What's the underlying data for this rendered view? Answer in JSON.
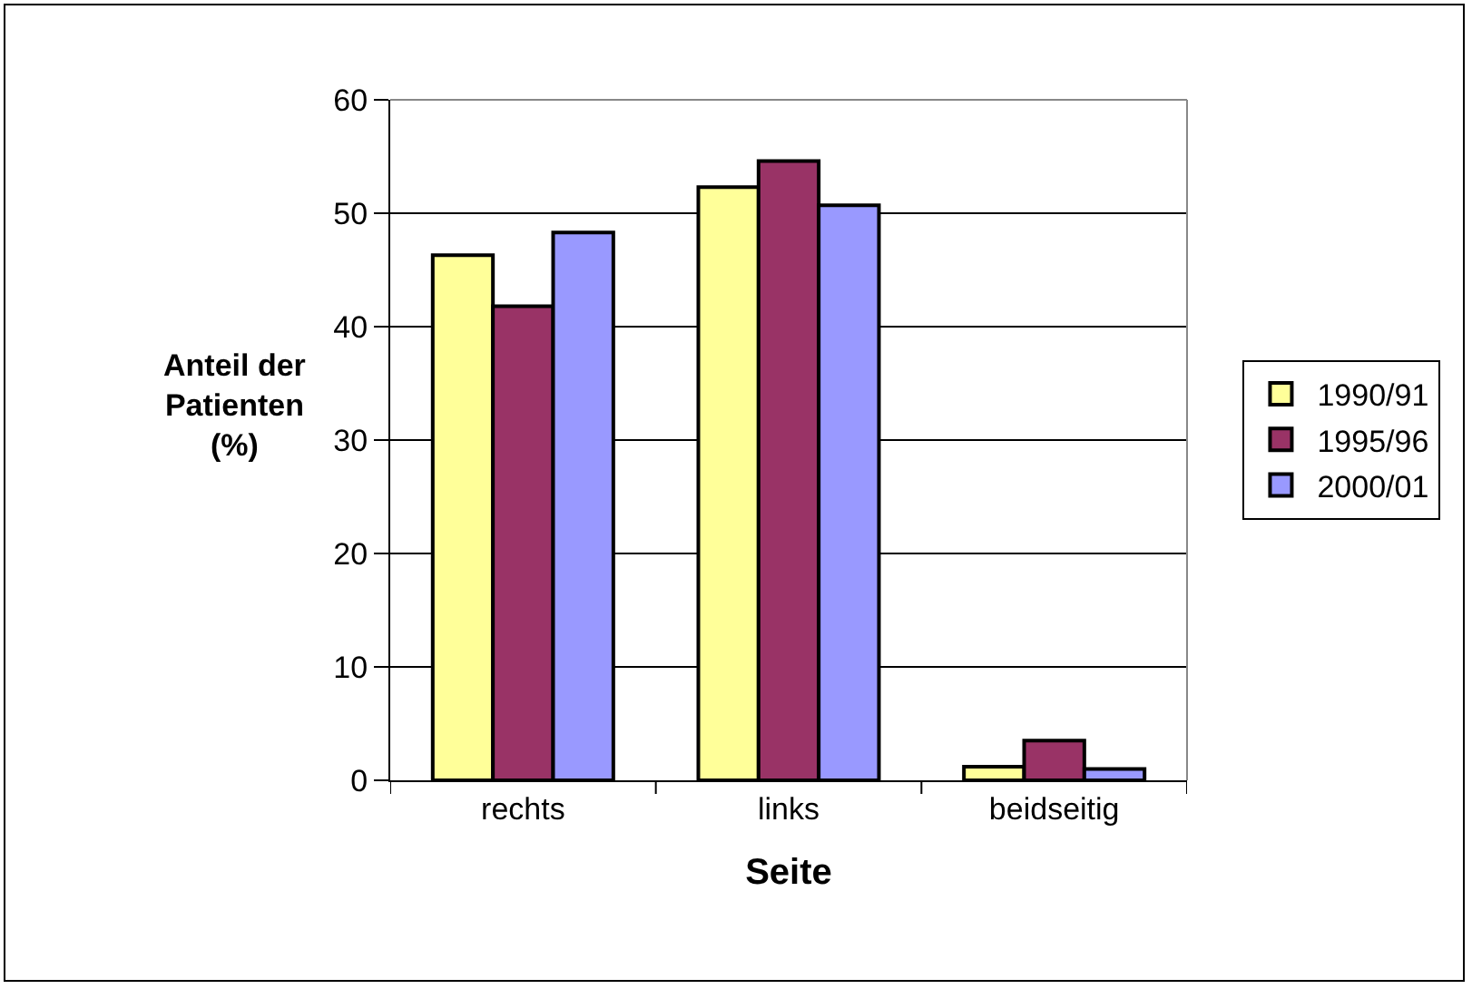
{
  "chart_data": {
    "type": "bar",
    "xlabel": "Seite",
    "ylabel": "Anteil der\nPatienten\n(%)",
    "categories": [
      "rechts",
      "links",
      "beidseitig"
    ],
    "series": [
      {
        "name": "1990/91",
        "color": "#ffff99",
        "values": [
          46.3,
          52.3,
          1.2
        ]
      },
      {
        "name": "1995/96",
        "color": "#993366",
        "values": [
          41.8,
          54.6,
          3.5
        ]
      },
      {
        "name": "2000/01",
        "color": "#9999ff",
        "values": [
          48.3,
          50.7,
          1.0
        ]
      }
    ],
    "ylim": [
      0,
      60
    ],
    "yticks": [
      0,
      10,
      20,
      30,
      40,
      50,
      60
    ],
    "grid": "y",
    "legend": "right"
  }
}
